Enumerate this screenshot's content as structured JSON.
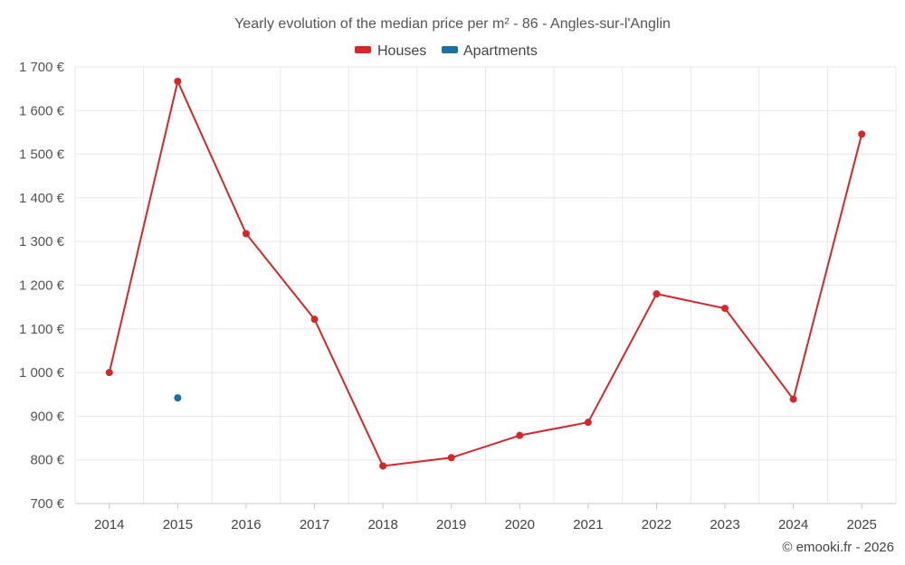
{
  "chart_data": {
    "type": "line",
    "title": "Yearly evolution of the median price per m² - 86 - Angles-sur-l'Anglin",
    "categories": [
      "2014",
      "2015",
      "2016",
      "2017",
      "2018",
      "2019",
      "2020",
      "2021",
      "2022",
      "2023",
      "2024",
      "2025"
    ],
    "series": [
      {
        "name": "Houses",
        "color": "#d62728",
        "values": [
          1000,
          1667,
          1318,
          1122,
          786,
          805,
          856,
          886,
          1180,
          1147,
          939,
          1546
        ]
      },
      {
        "name": "Apartments",
        "color": "#1a6fa3",
        "values": [
          null,
          942,
          null,
          null,
          null,
          null,
          null,
          null,
          null,
          null,
          null,
          null
        ]
      }
    ],
    "ylim": [
      700,
      1700
    ],
    "yticks": [
      700,
      800,
      900,
      1000,
      1100,
      1200,
      1300,
      1400,
      1500,
      1600,
      1700
    ],
    "ytick_labels": [
      "700 €",
      "800 €",
      "900 €",
      "1 000 €",
      "1 100 €",
      "1 200 €",
      "1 300 €",
      "1 400 €",
      "1 500 €",
      "1 600 €",
      "1 700 €"
    ],
    "xlabel": "",
    "ylabel": "",
    "legend_position": "top-center",
    "grid": true
  },
  "credit": "© emooki.fr - 2026"
}
